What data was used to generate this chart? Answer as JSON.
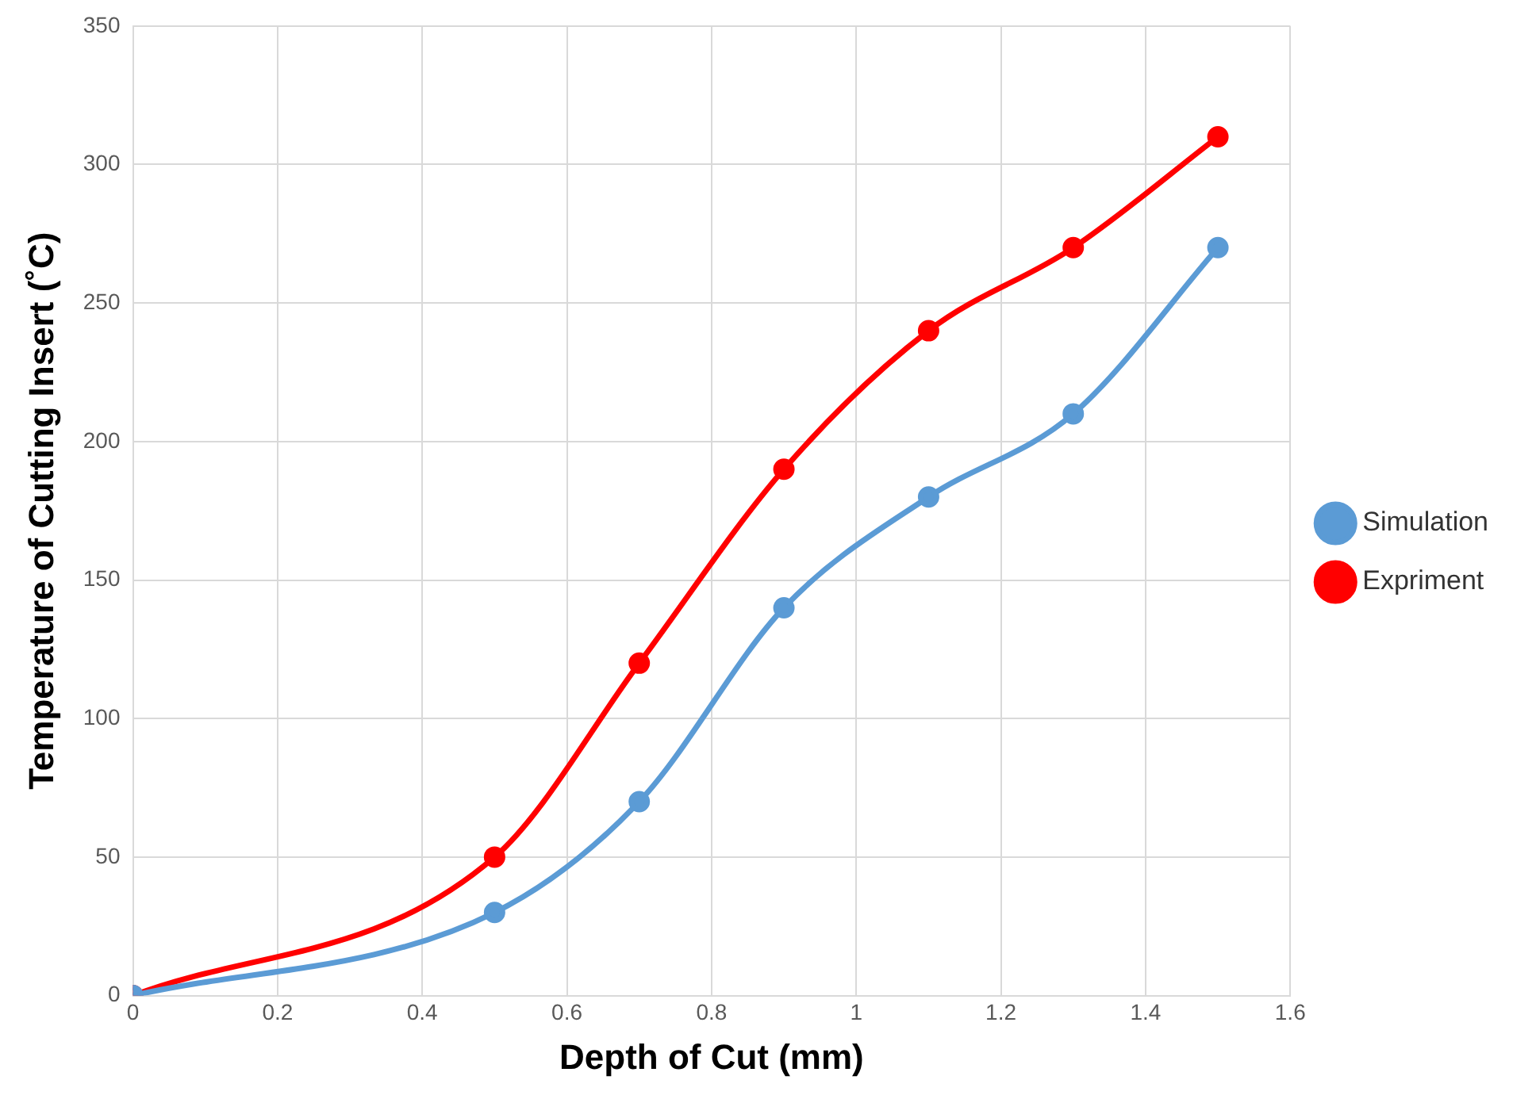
{
  "chart_data": {
    "type": "line",
    "xlabel": "Depth of Cut (mm)",
    "ylabel": "Temperature of Cutting Insert (˚C)",
    "x": [
      0,
      0.5,
      0.7,
      0.9,
      1.1,
      1.3,
      1.5
    ],
    "series": [
      {
        "name": "Simulation",
        "color": "#5b9bd5",
        "values": [
          0,
          30,
          70,
          140,
          180,
          210,
          270
        ]
      },
      {
        "name": "Expriment",
        "color": "#ff0000",
        "values": [
          0,
          50,
          120,
          190,
          240,
          270,
          310
        ]
      }
    ],
    "xlim": [
      0,
      1.6
    ],
    "xticks": [
      0,
      0.2,
      0.4,
      0.6,
      0.8,
      1,
      1.2,
      1.4,
      1.6
    ],
    "ylim": [
      0,
      350
    ],
    "yticks": [
      0,
      50,
      100,
      150,
      200,
      250,
      300,
      350
    ],
    "grid": true,
    "legend": "right",
    "marker": "circle",
    "line_style": "solid"
  }
}
